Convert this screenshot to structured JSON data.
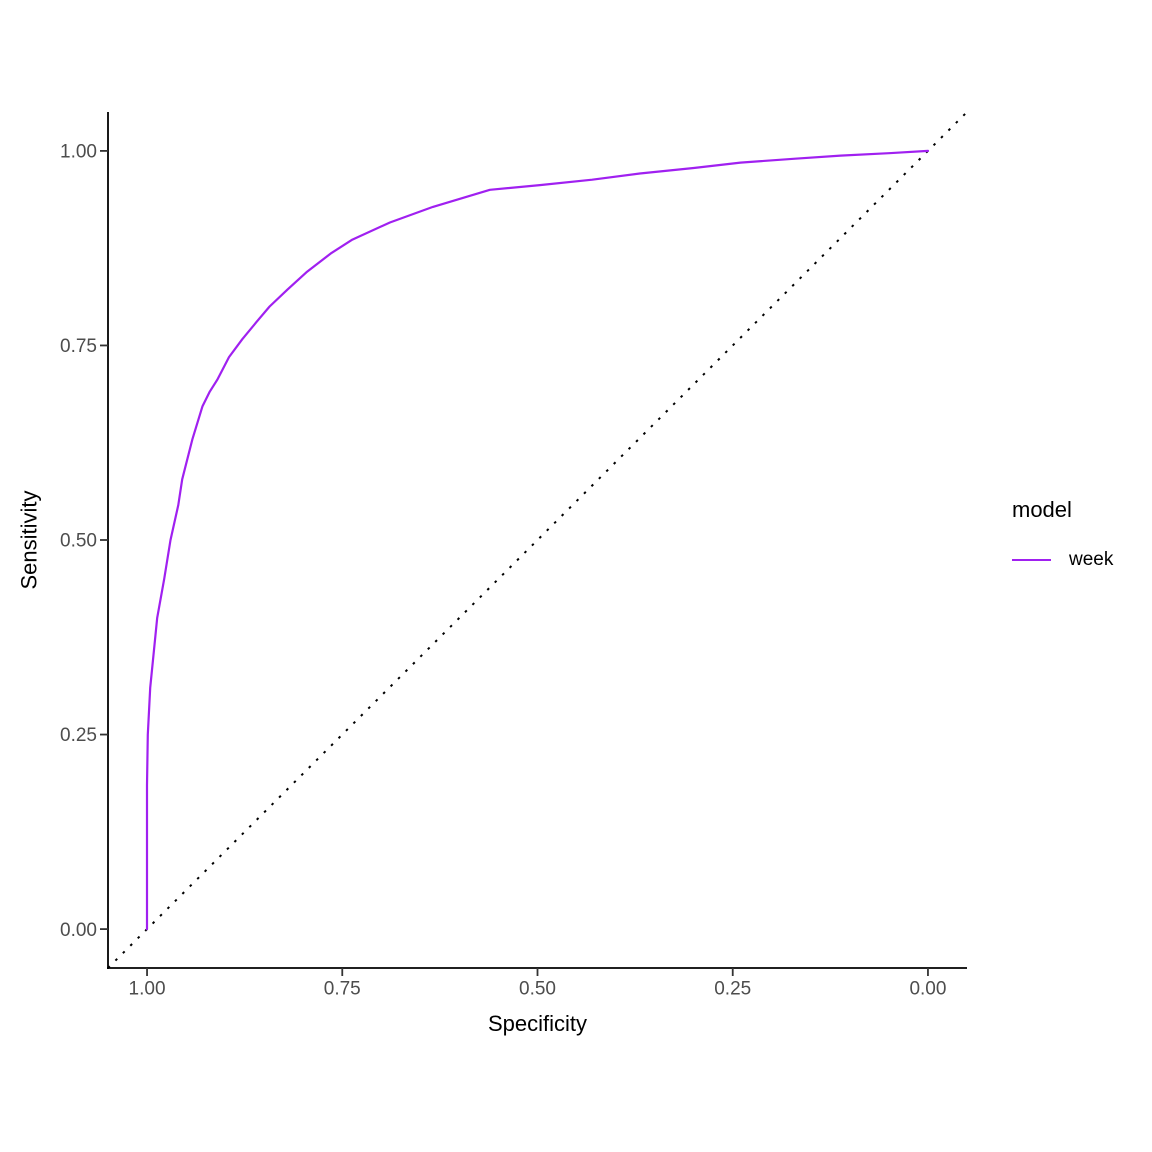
{
  "colors": {
    "background": "#FFFFFF",
    "axis_line": "#000000",
    "tick_mark": "#333333",
    "axis_text": "#4D4D4D",
    "axis_title": "#000000",
    "series_week": "#A020F0",
    "reference_line": "#000000"
  },
  "chart_data": {
    "type": "line",
    "title": "",
    "xlabel": "Specificity",
    "ylabel": "Sensitivity",
    "grid": false,
    "x_axis": {
      "tick_labels": [
        "1.00",
        "0.75",
        "0.50",
        "0.25",
        "0.00"
      ],
      "tick_values": [
        1.0,
        0.75,
        0.5,
        0.25,
        0.0
      ],
      "reversed": true,
      "range": [
        1.05,
        -0.05
      ]
    },
    "y_axis": {
      "tick_labels": [
        "0.00",
        "0.25",
        "0.50",
        "0.75",
        "1.00"
      ],
      "tick_values": [
        0.0,
        0.25,
        0.5,
        0.75,
        1.0
      ],
      "range": [
        -0.05,
        1.05
      ]
    },
    "legend": {
      "title": "model",
      "position": "right",
      "entries": [
        {
          "label": "week",
          "color": "#A020F0"
        }
      ]
    },
    "series": [
      {
        "name": "week",
        "color": "#A020F0",
        "points_format": "[specificity, sensitivity]",
        "points": [
          [
            1.0,
            0.0
          ],
          [
            1.0,
            0.185
          ],
          [
            0.999,
            0.25
          ],
          [
            0.996,
            0.31
          ],
          [
            0.991,
            0.36
          ],
          [
            0.987,
            0.4
          ],
          [
            0.978,
            0.45
          ],
          [
            0.97,
            0.5
          ],
          [
            0.96,
            0.545
          ],
          [
            0.955,
            0.578
          ],
          [
            0.942,
            0.629
          ],
          [
            0.929,
            0.672
          ],
          [
            0.92,
            0.69
          ],
          [
            0.91,
            0.706
          ],
          [
            0.895,
            0.735
          ],
          [
            0.878,
            0.758
          ],
          [
            0.86,
            0.78
          ],
          [
            0.843,
            0.8
          ],
          [
            0.82,
            0.822
          ],
          [
            0.796,
            0.844
          ],
          [
            0.765,
            0.868
          ],
          [
            0.737,
            0.886
          ],
          [
            0.689,
            0.908
          ],
          [
            0.634,
            0.928
          ],
          [
            0.561,
            0.95
          ],
          [
            0.497,
            0.956
          ],
          [
            0.43,
            0.963
          ],
          [
            0.369,
            0.971
          ],
          [
            0.3,
            0.978
          ],
          [
            0.24,
            0.985
          ],
          [
            0.17,
            0.99
          ],
          [
            0.112,
            0.994
          ],
          [
            0.05,
            0.997
          ],
          [
            0.0,
            1.0
          ]
        ]
      }
    ],
    "reference_line": {
      "type": "chance-diagonal",
      "style": "dotted",
      "color": "#000000",
      "from": [
        1.05,
        -0.05
      ],
      "to": [
        -0.05,
        1.05
      ]
    }
  }
}
